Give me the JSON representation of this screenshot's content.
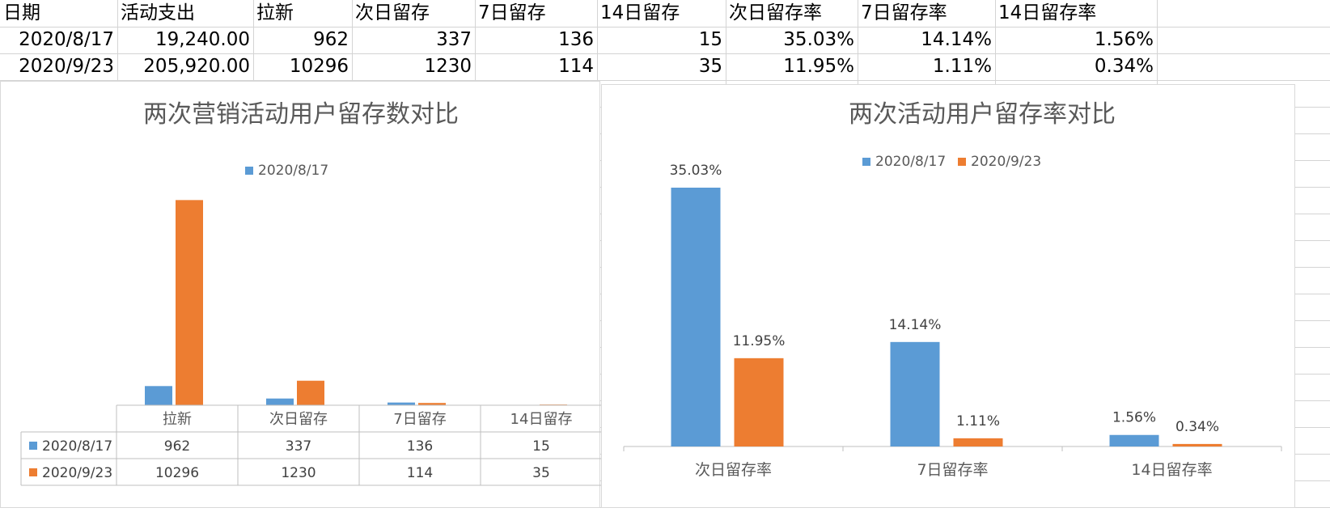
{
  "sheet": {
    "headers": [
      "日期",
      "活动支出",
      "拉新",
      "次日留存",
      "7日留存",
      "14日留存",
      "次日留存率",
      "7日留存率",
      "14日留存率"
    ],
    "rows": [
      [
        "2020/8/17",
        "19,240.00",
        "962",
        "337",
        "136",
        "15",
        "35.03%",
        "14.14%",
        "1.56%"
      ],
      [
        "2020/9/23",
        "205,920.00",
        "10296",
        "1230",
        "114",
        "35",
        "11.95%",
        "1.11%",
        "0.34%"
      ]
    ]
  },
  "colors": {
    "series1": "#5b9bd5",
    "series2": "#ed7d31"
  },
  "chart_data": [
    {
      "type": "bar",
      "title": "两次营销活动用户留存数对比",
      "categories": [
        "拉新",
        "次日留存",
        "7日留存",
        "14日留存"
      ],
      "series": [
        {
          "name": "2020/8/17",
          "values": [
            962,
            337,
            136,
            15
          ]
        },
        {
          "name": "2020/9/23",
          "values": [
            10296,
            1230,
            114,
            35
          ]
        }
      ],
      "legend": "top",
      "legend_entries": [
        "2020/8/17"
      ],
      "data_table": true,
      "ylim": [
        0,
        11000
      ],
      "grid": false
    },
    {
      "type": "bar",
      "title": "两次活动用户留存率对比",
      "categories": [
        "次日留存率",
        "7日留存率",
        "14日留存率"
      ],
      "series": [
        {
          "name": "2020/8/17",
          "values": [
            35.03,
            14.14,
            1.56
          ],
          "labels": [
            "35.03%",
            "14.14%",
            "1.56%"
          ]
        },
        {
          "name": "2020/9/23",
          "values": [
            11.95,
            1.11,
            0.34
          ],
          "labels": [
            "11.95%",
            "1.11%",
            "0.34%"
          ]
        }
      ],
      "legend": "top",
      "ylim": [
        0,
        40
      ],
      "grid": false
    }
  ]
}
